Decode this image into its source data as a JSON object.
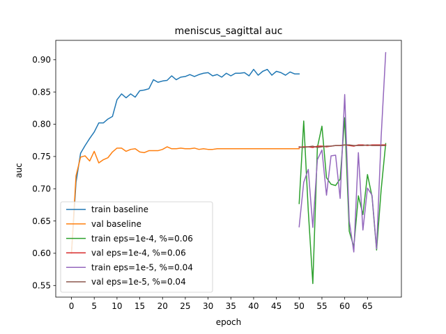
{
  "chart_data": {
    "type": "line",
    "title": "meniscus_sagittal auc",
    "xlabel": "epoch",
    "ylabel": "auc",
    "xlim": [
      -3.45,
      72.45
    ],
    "ylim": [
      0.532,
      0.93
    ],
    "xticks": [
      0,
      5,
      10,
      15,
      20,
      25,
      30,
      35,
      40,
      45,
      50,
      55,
      60,
      65
    ],
    "yticks": [
      0.55,
      0.6,
      0.65,
      0.7,
      0.75,
      0.8,
      0.85,
      0.9
    ],
    "ytick_labels": [
      "0.55",
      "0.60",
      "0.65",
      "0.70",
      "0.75",
      "0.80",
      "0.85",
      "0.90"
    ],
    "grid": false,
    "legend_position": "lower-left",
    "series": [
      {
        "name": "train baseline",
        "color": "#1f77b4",
        "x_start": 0,
        "values": [
          0.6,
          0.71,
          0.755,
          0.767,
          0.778,
          0.788,
          0.802,
          0.802,
          0.808,
          0.812,
          0.838,
          0.847,
          0.841,
          0.847,
          0.842,
          0.852,
          0.853,
          0.855,
          0.869,
          0.865,
          0.867,
          0.868,
          0.875,
          0.869,
          0.873,
          0.874,
          0.877,
          0.874,
          0.877,
          0.879,
          0.88,
          0.875,
          0.877,
          0.873,
          0.879,
          0.875,
          0.879,
          0.879,
          0.88,
          0.875,
          0.885,
          0.876,
          0.882,
          0.885,
          0.876,
          0.882,
          0.88,
          0.876,
          0.881,
          0.878,
          0.878
        ]
      },
      {
        "name": "val baseline",
        "color": "#ff7f0e",
        "x_start": 0,
        "values": [
          0.6,
          0.72,
          0.749,
          0.751,
          0.743,
          0.758,
          0.74,
          0.745,
          0.748,
          0.757,
          0.763,
          0.763,
          0.758,
          0.761,
          0.762,
          0.757,
          0.756,
          0.759,
          0.759,
          0.759,
          0.761,
          0.765,
          0.762,
          0.762,
          0.763,
          0.762,
          0.762,
          0.763,
          0.761,
          0.762,
          0.761,
          0.761,
          0.762,
          0.762,
          0.762,
          0.762,
          0.762,
          0.762,
          0.762,
          0.762,
          0.762,
          0.762,
          0.762,
          0.762,
          0.762,
          0.762,
          0.762,
          0.762,
          0.762,
          0.762,
          0.762
        ]
      },
      {
        "name": "train eps=1e-4, %=0.06",
        "color": "#2ca02c",
        "x_start": 50,
        "values": [
          0.677,
          0.805,
          0.666,
          0.553,
          0.764,
          0.797,
          0.717,
          0.707,
          0.705,
          0.715,
          0.81,
          0.634,
          0.61,
          0.689,
          0.66,
          0.722,
          0.688,
          0.605,
          0.698,
          0.77
        ]
      },
      {
        "name": "val eps=1e-4, %=0.06",
        "color": "#d62728",
        "x_start": 50,
        "values": [
          0.764,
          0.765,
          0.765,
          0.764,
          0.766,
          0.766,
          0.765,
          0.766,
          0.767,
          0.767,
          0.768,
          0.767,
          0.766,
          0.768,
          0.768,
          0.767,
          0.768,
          0.768,
          0.768,
          0.768
        ]
      },
      {
        "name": "train eps=1e-5, %=0.04",
        "color": "#9467bd",
        "x_start": 50,
        "values": [
          0.641,
          0.71,
          0.73,
          0.64,
          0.745,
          0.76,
          0.69,
          0.751,
          0.752,
          0.685,
          0.846,
          0.65,
          0.602,
          0.756,
          0.636,
          0.701,
          0.69,
          0.607,
          0.78,
          0.911
        ]
      },
      {
        "name": "val eps=1e-5, %=0.04",
        "color": "#8c564b",
        "x_start": 50,
        "values": [
          0.765,
          0.764,
          0.765,
          0.766,
          0.764,
          0.765,
          0.766,
          0.766,
          0.767,
          0.767,
          0.768,
          0.768,
          0.767,
          0.767,
          0.767,
          0.768,
          0.767,
          0.767,
          0.767,
          0.767
        ]
      }
    ]
  }
}
